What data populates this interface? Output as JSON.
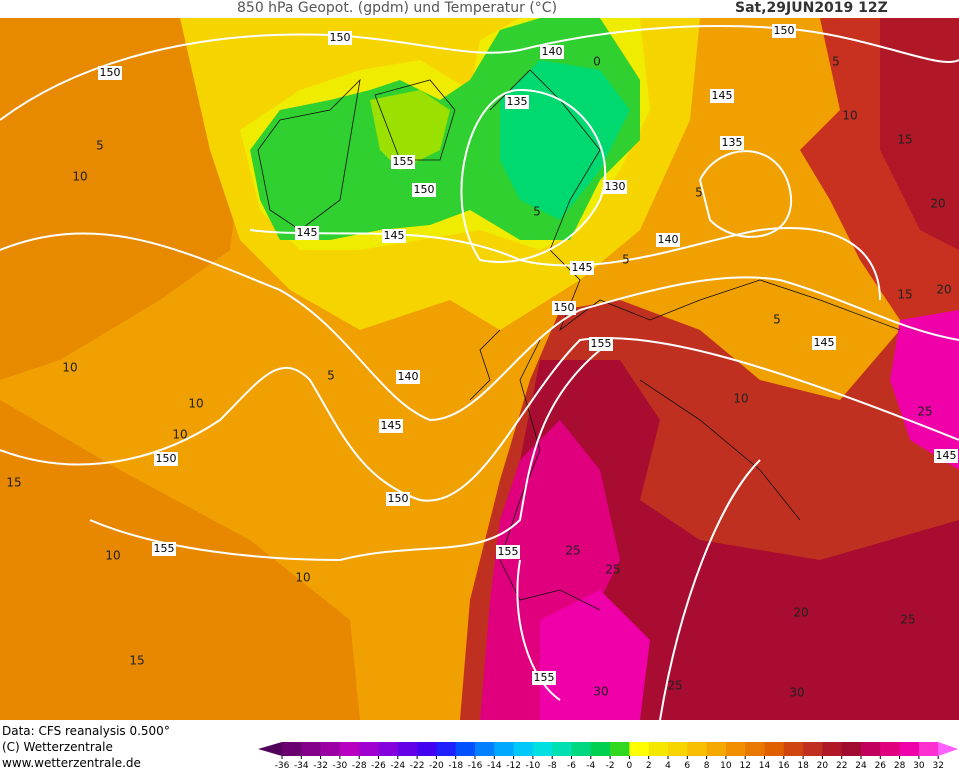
{
  "header": {
    "title": "850 hPa Geopot. (gpdm) und Temperatur (°C)",
    "date": "Sat,29JUN2019 12Z"
  },
  "footer": {
    "lines": [
      "Data: CFS reanalysis 0.500°",
      "(C) Wetterzentrale",
      "www.wetterzentrale.de"
    ]
  },
  "colorbar": {
    "ticks": [
      -36,
      -34,
      -32,
      -30,
      -28,
      -26,
      -24,
      -22,
      -20,
      -18,
      -16,
      -14,
      -12,
      -10,
      -8,
      -6,
      -4,
      -2,
      0,
      2,
      4,
      6,
      8,
      10,
      12,
      14,
      16,
      18,
      20,
      22,
      24,
      26,
      28,
      30,
      32
    ],
    "colors": [
      "#50005a",
      "#6a0070",
      "#82008a",
      "#9a00a4",
      "#b800c0",
      "#a000d0",
      "#8400dc",
      "#6400e8",
      "#4400f0",
      "#2020ff",
      "#0050ff",
      "#0080ff",
      "#00a8ff",
      "#00c8f8",
      "#00e0e0",
      "#00e0b0",
      "#00d880",
      "#00d050",
      "#30d820",
      "#ffff00",
      "#f4e800",
      "#f8d400",
      "#f8c000",
      "#f4a800",
      "#f09000",
      "#e87800",
      "#e06000",
      "#d04410",
      "#c03020",
      "#b01828",
      "#a00c30",
      "#c0005c",
      "#e0007e",
      "#f000a8",
      "#ff30d0",
      "#ff60ff"
    ]
  },
  "map": {
    "geopotential_labels": [
      150,
      140,
      150,
      150,
      135,
      145,
      135,
      155,
      150,
      130,
      145,
      145,
      140,
      145,
      150,
      155,
      145,
      140,
      145,
      150,
      145,
      150,
      155,
      155,
      155
    ],
    "temperature_labels": [
      0,
      5,
      10,
      15,
      5,
      10,
      5,
      5,
      20,
      5,
      15,
      20,
      5,
      10,
      10,
      10,
      5,
      10,
      25,
      15,
      10,
      10,
      25,
      25,
      20,
      25,
      15,
      30,
      25,
      30
    ]
  }
}
